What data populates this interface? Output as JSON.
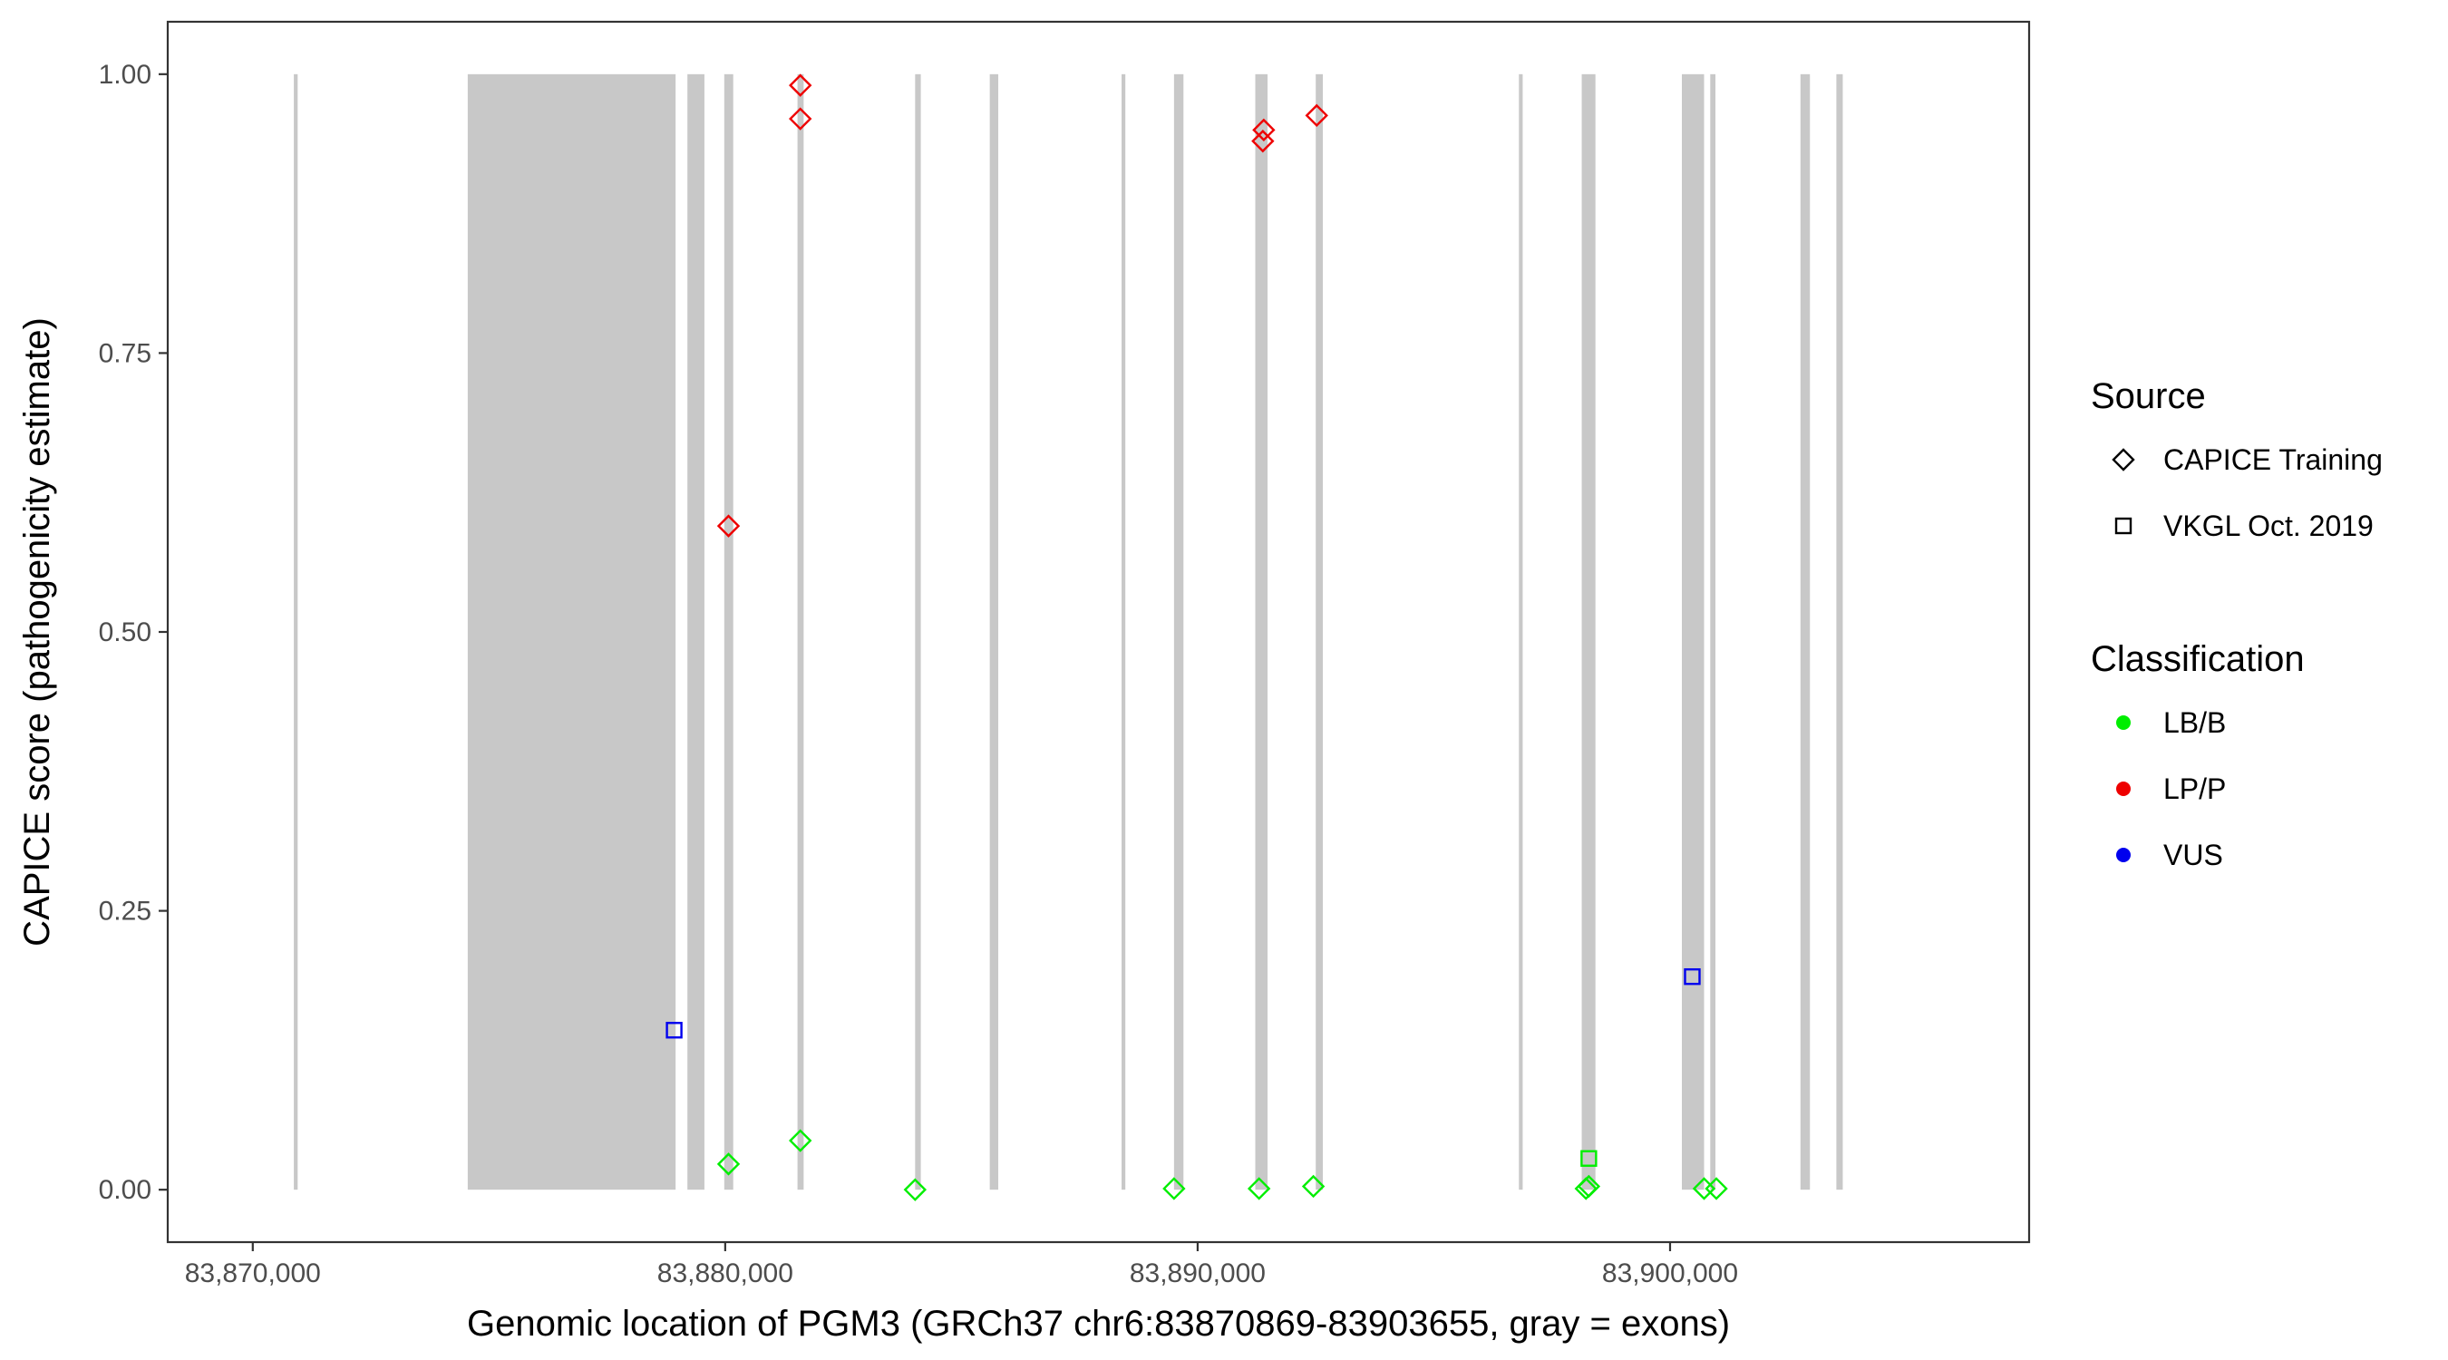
{
  "chart_data": {
    "type": "scatter",
    "xlabel": "Genomic location of PGM3 (GRCh37 chr6:83870869-83903655, gray = exons)",
    "ylabel": "CAPICE score (pathogenicity estimate)",
    "xlim": [
      83868200,
      83907600
    ],
    "ylim": [
      -0.047,
      1.047
    ],
    "x_ticks": [
      83870000,
      83880000,
      83890000,
      83900000
    ],
    "x_tick_labels": [
      "83,870,000",
      "83,880,000",
      "83,890,000",
      "83,900,000"
    ],
    "y_ticks": [
      0.0,
      0.25,
      0.5,
      0.75,
      1.0
    ],
    "y_tick_labels": [
      "0.00",
      "0.25",
      "0.50",
      "0.75",
      "1.00"
    ],
    "grid": false,
    "legend_position": "right",
    "exon_color": "#c8c8c8",
    "exons": [
      {
        "start": 83870869,
        "end": 83870950
      },
      {
        "start": 83874550,
        "end": 83878950
      },
      {
        "start": 83879200,
        "end": 83879560
      },
      {
        "start": 83879980,
        "end": 83880170
      },
      {
        "start": 83881530,
        "end": 83881660
      },
      {
        "start": 83884020,
        "end": 83884140
      },
      {
        "start": 83885600,
        "end": 83885780
      },
      {
        "start": 83888390,
        "end": 83888470
      },
      {
        "start": 83889500,
        "end": 83889700
      },
      {
        "start": 83891220,
        "end": 83891480
      },
      {
        "start": 83892500,
        "end": 83892650
      },
      {
        "start": 83896800,
        "end": 83896880
      },
      {
        "start": 83898130,
        "end": 83898420
      },
      {
        "start": 83900250,
        "end": 83900720
      },
      {
        "start": 83900850,
        "end": 83900960
      },
      {
        "start": 83902760,
        "end": 83902960
      },
      {
        "start": 83903520,
        "end": 83903655
      }
    ],
    "sources": [
      {
        "name": "CAPICE Training",
        "shape": "diamond"
      },
      {
        "name": "VKGL Oct. 2019",
        "shape": "square"
      }
    ],
    "classifications": [
      {
        "name": "LB/B",
        "color": "#00ee00"
      },
      {
        "name": "LP/P",
        "color": "#ee0000"
      },
      {
        "name": "VUS",
        "color": "#0000ee"
      }
    ],
    "series": [
      {
        "source": "CAPICE Training",
        "classification": "LP/P",
        "points": [
          {
            "x": 83881590,
            "y": 0.99
          },
          {
            "x": 83881590,
            "y": 0.96
          },
          {
            "x": 83880070,
            "y": 0.595
          },
          {
            "x": 83891400,
            "y": 0.95
          },
          {
            "x": 83891380,
            "y": 0.94
          },
          {
            "x": 83892520,
            "y": 0.963
          }
        ]
      },
      {
        "source": "CAPICE Training",
        "classification": "LB/B",
        "points": [
          {
            "x": 83880070,
            "y": 0.023
          },
          {
            "x": 83881590,
            "y": 0.044
          },
          {
            "x": 83884020,
            "y": 0.0
          },
          {
            "x": 83889500,
            "y": 0.001
          },
          {
            "x": 83891300,
            "y": 0.001
          },
          {
            "x": 83892450,
            "y": 0.003
          },
          {
            "x": 83898220,
            "y": 0.001
          },
          {
            "x": 83898280,
            "y": 0.003
          },
          {
            "x": 83900720,
            "y": 0.001
          },
          {
            "x": 83900980,
            "y": 0.001
          }
        ]
      },
      {
        "source": "VKGL Oct. 2019",
        "classification": "VUS",
        "points": [
          {
            "x": 83878920,
            "y": 0.143
          },
          {
            "x": 83900470,
            "y": 0.191
          }
        ]
      },
      {
        "source": "VKGL Oct. 2019",
        "classification": "LB/B",
        "points": [
          {
            "x": 83898280,
            "y": 0.028
          }
        ]
      }
    ],
    "legend": {
      "source_title": "Source",
      "classification_title": "Classification"
    }
  }
}
